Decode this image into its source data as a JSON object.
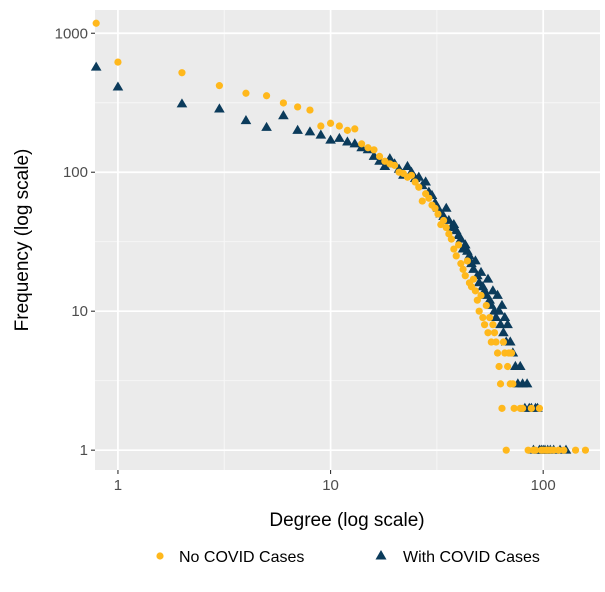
{
  "chart_data": {
    "type": "scatter",
    "title": "",
    "xlabel": "Degree (log scale)",
    "ylabel": "Frequency (log scale)",
    "xscale": "log",
    "yscale": "log",
    "xlim": [
      0.78,
      185
    ],
    "ylim": [
      0.72,
      1470
    ],
    "grid": true,
    "panel_background": "#ebebeb",
    "legend_position": "bottom",
    "x_ticks": [
      {
        "value": 1,
        "label": "1"
      },
      {
        "value": 10,
        "label": "10"
      },
      {
        "value": 100,
        "label": "100"
      }
    ],
    "y_ticks": [
      {
        "value": 1,
        "label": "1"
      },
      {
        "value": 10,
        "label": "10"
      },
      {
        "value": 100,
        "label": "100"
      },
      {
        "value": 1000,
        "label": "1000"
      }
    ],
    "series": [
      {
        "name": "No COVID Cases",
        "marker": "circle",
        "color": "#ffb81c",
        "points": [
          [
            0.79,
            1180
          ],
          [
            1,
            620
          ],
          [
            2,
            520
          ],
          [
            3,
            420
          ],
          [
            4,
            370
          ],
          [
            5,
            355
          ],
          [
            6,
            315
          ],
          [
            7,
            295
          ],
          [
            8,
            280
          ],
          [
            9,
            215
          ],
          [
            10,
            225
          ],
          [
            11,
            215
          ],
          [
            12,
            200
          ],
          [
            13,
            205
          ],
          [
            14,
            160
          ],
          [
            15,
            150
          ],
          [
            16,
            145
          ],
          [
            17,
            130
          ],
          [
            18,
            120
          ],
          [
            19,
            115
          ],
          [
            20,
            112
          ],
          [
            21,
            100
          ],
          [
            22,
            98
          ],
          [
            23,
            92
          ],
          [
            24,
            95
          ],
          [
            25,
            85
          ],
          [
            26,
            78
          ],
          [
            27,
            62
          ],
          [
            28,
            70
          ],
          [
            29,
            65
          ],
          [
            30,
            58
          ],
          [
            31,
            55
          ],
          [
            32,
            50
          ],
          [
            33,
            42
          ],
          [
            34,
            45
          ],
          [
            35,
            40
          ],
          [
            36,
            36
          ],
          [
            37,
            33
          ],
          [
            38,
            28
          ],
          [
            39,
            25
          ],
          [
            40,
            30
          ],
          [
            41,
            22
          ],
          [
            42,
            20
          ],
          [
            43,
            18
          ],
          [
            44,
            23
          ],
          [
            45,
            16
          ],
          [
            46,
            15
          ],
          [
            47,
            17
          ],
          [
            48,
            14
          ],
          [
            49,
            12
          ],
          [
            50,
            10
          ],
          [
            51,
            13
          ],
          [
            52,
            9
          ],
          [
            53,
            8
          ],
          [
            54,
            11
          ],
          [
            55,
            7
          ],
          [
            56,
            9
          ],
          [
            57,
            6
          ],
          [
            58,
            8
          ],
          [
            59,
            7
          ],
          [
            60,
            6
          ],
          [
            61,
            5
          ],
          [
            62,
            4
          ],
          [
            63,
            3
          ],
          [
            64,
            2
          ],
          [
            65,
            6
          ],
          [
            66,
            5
          ],
          [
            67,
            1
          ],
          [
            68,
            4
          ],
          [
            69,
            5
          ],
          [
            70,
            3
          ],
          [
            71,
            5
          ],
          [
            72,
            3
          ],
          [
            73,
            2
          ],
          [
            78,
            2
          ],
          [
            80,
            2
          ],
          [
            85,
            1
          ],
          [
            88,
            2
          ],
          [
            90,
            1
          ],
          [
            92,
            1
          ],
          [
            96,
            2
          ],
          [
            98,
            1
          ],
          [
            100,
            1
          ],
          [
            103,
            1
          ],
          [
            105,
            1
          ],
          [
            108,
            1
          ],
          [
            112,
            1
          ],
          [
            118,
            1
          ],
          [
            125,
            1
          ],
          [
            142,
            1
          ],
          [
            158,
            1
          ]
        ]
      },
      {
        "name": "With COVID Cases",
        "marker": "triangle",
        "color": "#0b3b5b",
        "points": [
          [
            0.79,
            570
          ],
          [
            1,
            410
          ],
          [
            2,
            310
          ],
          [
            3,
            285
          ],
          [
            4,
            235
          ],
          [
            5,
            210
          ],
          [
            6,
            255
          ],
          [
            7,
            200
          ],
          [
            8,
            195
          ],
          [
            9,
            185
          ],
          [
            10,
            170
          ],
          [
            11,
            175
          ],
          [
            12,
            165
          ],
          [
            13,
            160
          ],
          [
            14,
            150
          ],
          [
            15,
            145
          ],
          [
            16,
            130
          ],
          [
            17,
            120
          ],
          [
            18,
            110
          ],
          [
            19,
            125
          ],
          [
            20,
            115
          ],
          [
            21,
            105
          ],
          [
            22,
            95
          ],
          [
            23,
            110
          ],
          [
            24,
            100
          ],
          [
            25,
            90
          ],
          [
            26,
            92
          ],
          [
            27,
            80
          ],
          [
            28,
            85
          ],
          [
            29,
            72
          ],
          [
            30,
            68
          ],
          [
            31,
            60
          ],
          [
            32,
            55
          ],
          [
            33,
            50
          ],
          [
            34,
            48
          ],
          [
            35,
            55
          ],
          [
            36,
            45
          ],
          [
            37,
            40
          ],
          [
            38,
            42
          ],
          [
            39,
            38
          ],
          [
            40,
            35
          ],
          [
            41,
            33
          ],
          [
            42,
            28
          ],
          [
            43,
            30
          ],
          [
            44,
            27
          ],
          [
            45,
            25
          ],
          [
            46,
            22
          ],
          [
            47,
            20
          ],
          [
            48,
            23
          ],
          [
            49,
            18
          ],
          [
            50,
            16
          ],
          [
            51,
            19
          ],
          [
            52,
            15
          ],
          [
            53,
            14
          ],
          [
            54,
            13
          ],
          [
            55,
            17
          ],
          [
            56,
            12
          ],
          [
            57,
            11
          ],
          [
            58,
            14
          ],
          [
            59,
            10
          ],
          [
            60,
            9
          ],
          [
            61,
            13
          ],
          [
            62,
            10
          ],
          [
            63,
            8
          ],
          [
            64,
            11
          ],
          [
            65,
            7
          ],
          [
            66,
            9
          ],
          [
            67,
            6
          ],
          [
            68,
            8
          ],
          [
            70,
            6
          ],
          [
            72,
            5
          ],
          [
            74,
            4
          ],
          [
            76,
            3
          ],
          [
            78,
            4
          ],
          [
            80,
            3
          ],
          [
            82,
            2
          ],
          [
            84,
            3
          ],
          [
            86,
            2
          ],
          [
            88,
            2
          ],
          [
            90,
            1
          ],
          [
            92,
            2
          ],
          [
            94,
            2
          ],
          [
            96,
            1
          ],
          [
            98,
            1
          ],
          [
            100,
            1
          ],
          [
            102,
            1
          ],
          [
            105,
            1
          ],
          [
            108,
            1
          ],
          [
            112,
            1
          ],
          [
            120,
            1
          ],
          [
            128,
            1
          ]
        ]
      }
    ]
  }
}
